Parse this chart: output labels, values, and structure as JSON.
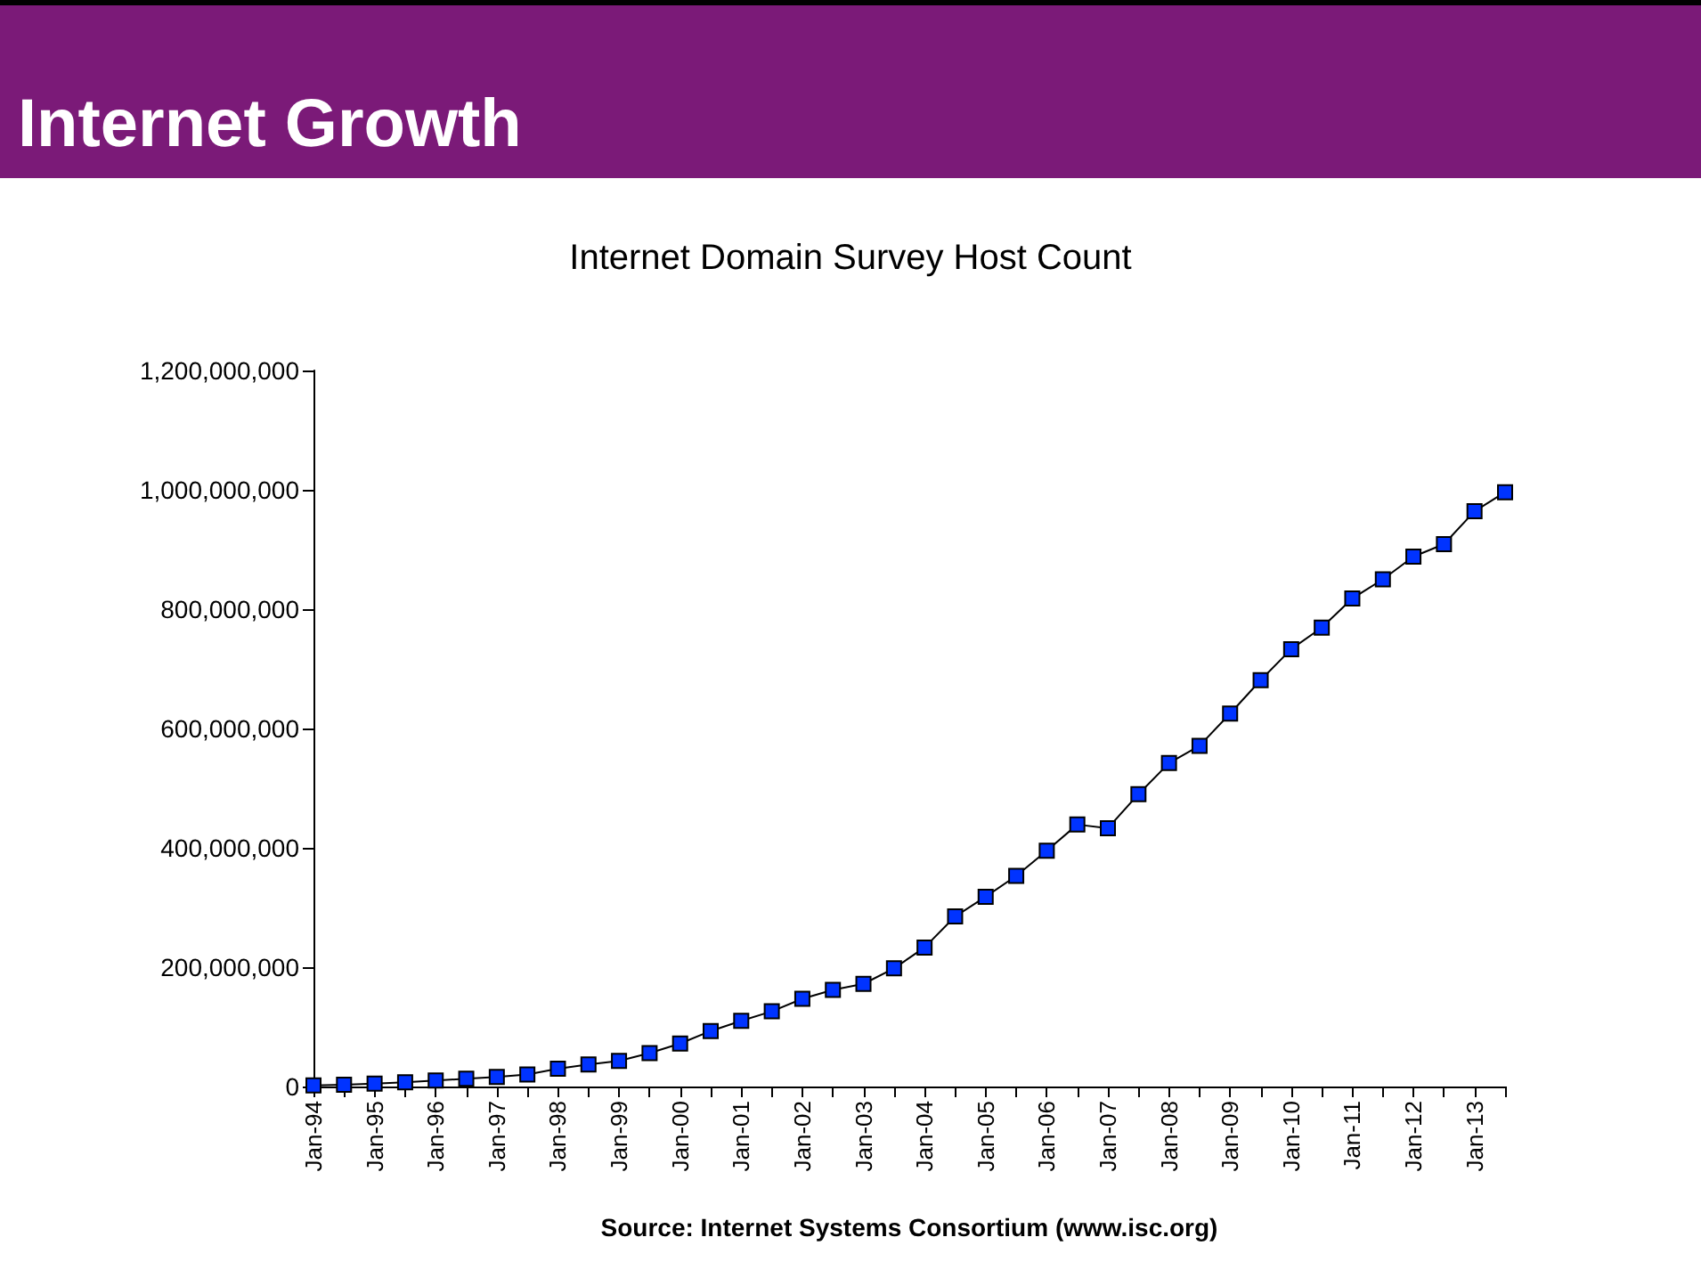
{
  "chart_data": {
    "type": "line",
    "title": "Internet Growth",
    "subtitle": "Internet Domain Survey Host Count",
    "xlabel": "Source: Internet Systems Consortium (www.isc.org)",
    "categories": [
      "Jan-94",
      null,
      "Jan-95",
      null,
      "Jan-96",
      null,
      "Jan-97",
      null,
      "Jan-98",
      null,
      "Jan-99",
      null,
      "Jan-00",
      null,
      "Jan-01",
      null,
      "Jan-02",
      null,
      "Jan-03",
      null,
      "Jan-04",
      null,
      "Jan-05",
      null,
      "Jan-06",
      null,
      "Jan-07",
      null,
      "Jan-08",
      null,
      "Jan-09",
      null,
      "Jan-10",
      null,
      "Jan-11",
      null,
      "Jan-12",
      null,
      "Jan-13",
      null
    ],
    "series": [
      {
        "color": "#0033ff",
        "values": [
          2000000,
          3000000,
          5000000,
          7000000,
          10000000,
          13000000,
          16000000,
          20000000,
          30000000,
          37000000,
          43000000,
          56000000,
          72000000,
          93000000,
          110000000,
          126000000,
          147000000,
          162000000,
          172000000,
          198000000,
          233000000,
          285000000,
          318000000,
          353000000,
          395000000,
          439000000,
          433000000,
          490000000,
          542000000,
          571000000,
          625000000,
          681000000,
          733000000,
          769000000,
          818000000,
          850000000,
          888000000,
          909000000,
          964000000,
          996000000
        ]
      }
    ],
    "ylim": [
      0,
      1200000000
    ],
    "yticks": [
      0,
      {
        "value": 200000000,
        "label": "200,000,000"
      },
      {
        "value": 400000000,
        "label": "400,000,000"
      },
      {
        "value": 600000000,
        "label": "600,000,000"
      },
      {
        "value": 800000000,
        "label": "800,000,000"
      },
      {
        "value": 1000000000,
        "label": "1,000,000,000"
      },
      {
        "value": 1200000000,
        "label": "1,200,000,000"
      }
    ],
    "marker": "square",
    "line_style": "solid"
  }
}
